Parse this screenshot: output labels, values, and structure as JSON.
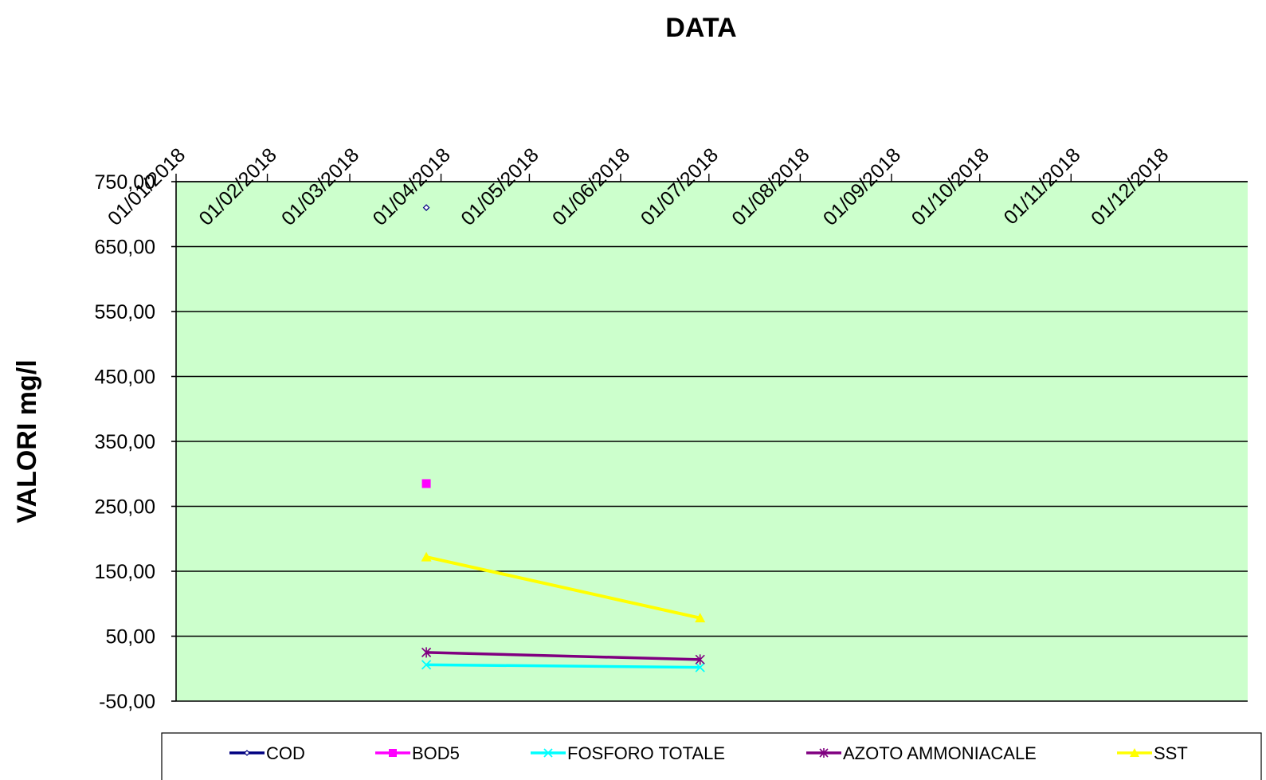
{
  "chart_data": {
    "type": "line",
    "title": "",
    "xlabel": "DATA",
    "ylabel": "VALORI mg/l",
    "x_tick_labels": [
      "01/01/2018",
      "01/02/2018",
      "01/03/2018",
      "01/04/2018",
      "01/05/2018",
      "01/06/2018",
      "01/07/2018",
      "01/08/2018",
      "01/09/2018",
      "01/10/2018",
      "01/11/2018",
      "01/12/2018"
    ],
    "y_tick_labels": [
      "750,00",
      "650,00",
      "550,00",
      "450,00",
      "350,00",
      "250,00",
      "150,00",
      "50,00",
      "-50,00"
    ],
    "xlim": [
      "2018-01-01",
      "2018-12-31"
    ],
    "ylim": [
      -50,
      750
    ],
    "x_axis_position": "top",
    "grid": "horizontal",
    "legend_position": "bottom",
    "plot_background": "#ccffcc",
    "series": [
      {
        "name": "COD",
        "color": "#000080",
        "marker": "diamond",
        "points": [
          {
            "x": "2018-03-27",
            "y": 710
          }
        ]
      },
      {
        "name": "BOD5",
        "color": "#ff00ff",
        "marker": "square",
        "points": [
          {
            "x": "2018-03-27",
            "y": 285
          }
        ]
      },
      {
        "name": "FOSFORO TOTALE",
        "color": "#00ffff",
        "marker": "x",
        "points": [
          {
            "x": "2018-03-27",
            "y": 6
          },
          {
            "x": "2018-06-28",
            "y": 2
          }
        ]
      },
      {
        "name": "AZOTO AMMONIACALE",
        "color": "#800080",
        "marker": "star",
        "points": [
          {
            "x": "2018-03-27",
            "y": 25
          },
          {
            "x": "2018-06-28",
            "y": 14
          }
        ]
      },
      {
        "name": "SST",
        "color": "#ffff00",
        "marker": "triangle",
        "points": [
          {
            "x": "2018-03-27",
            "y": 172
          },
          {
            "x": "2018-06-28",
            "y": 78
          }
        ]
      }
    ]
  }
}
